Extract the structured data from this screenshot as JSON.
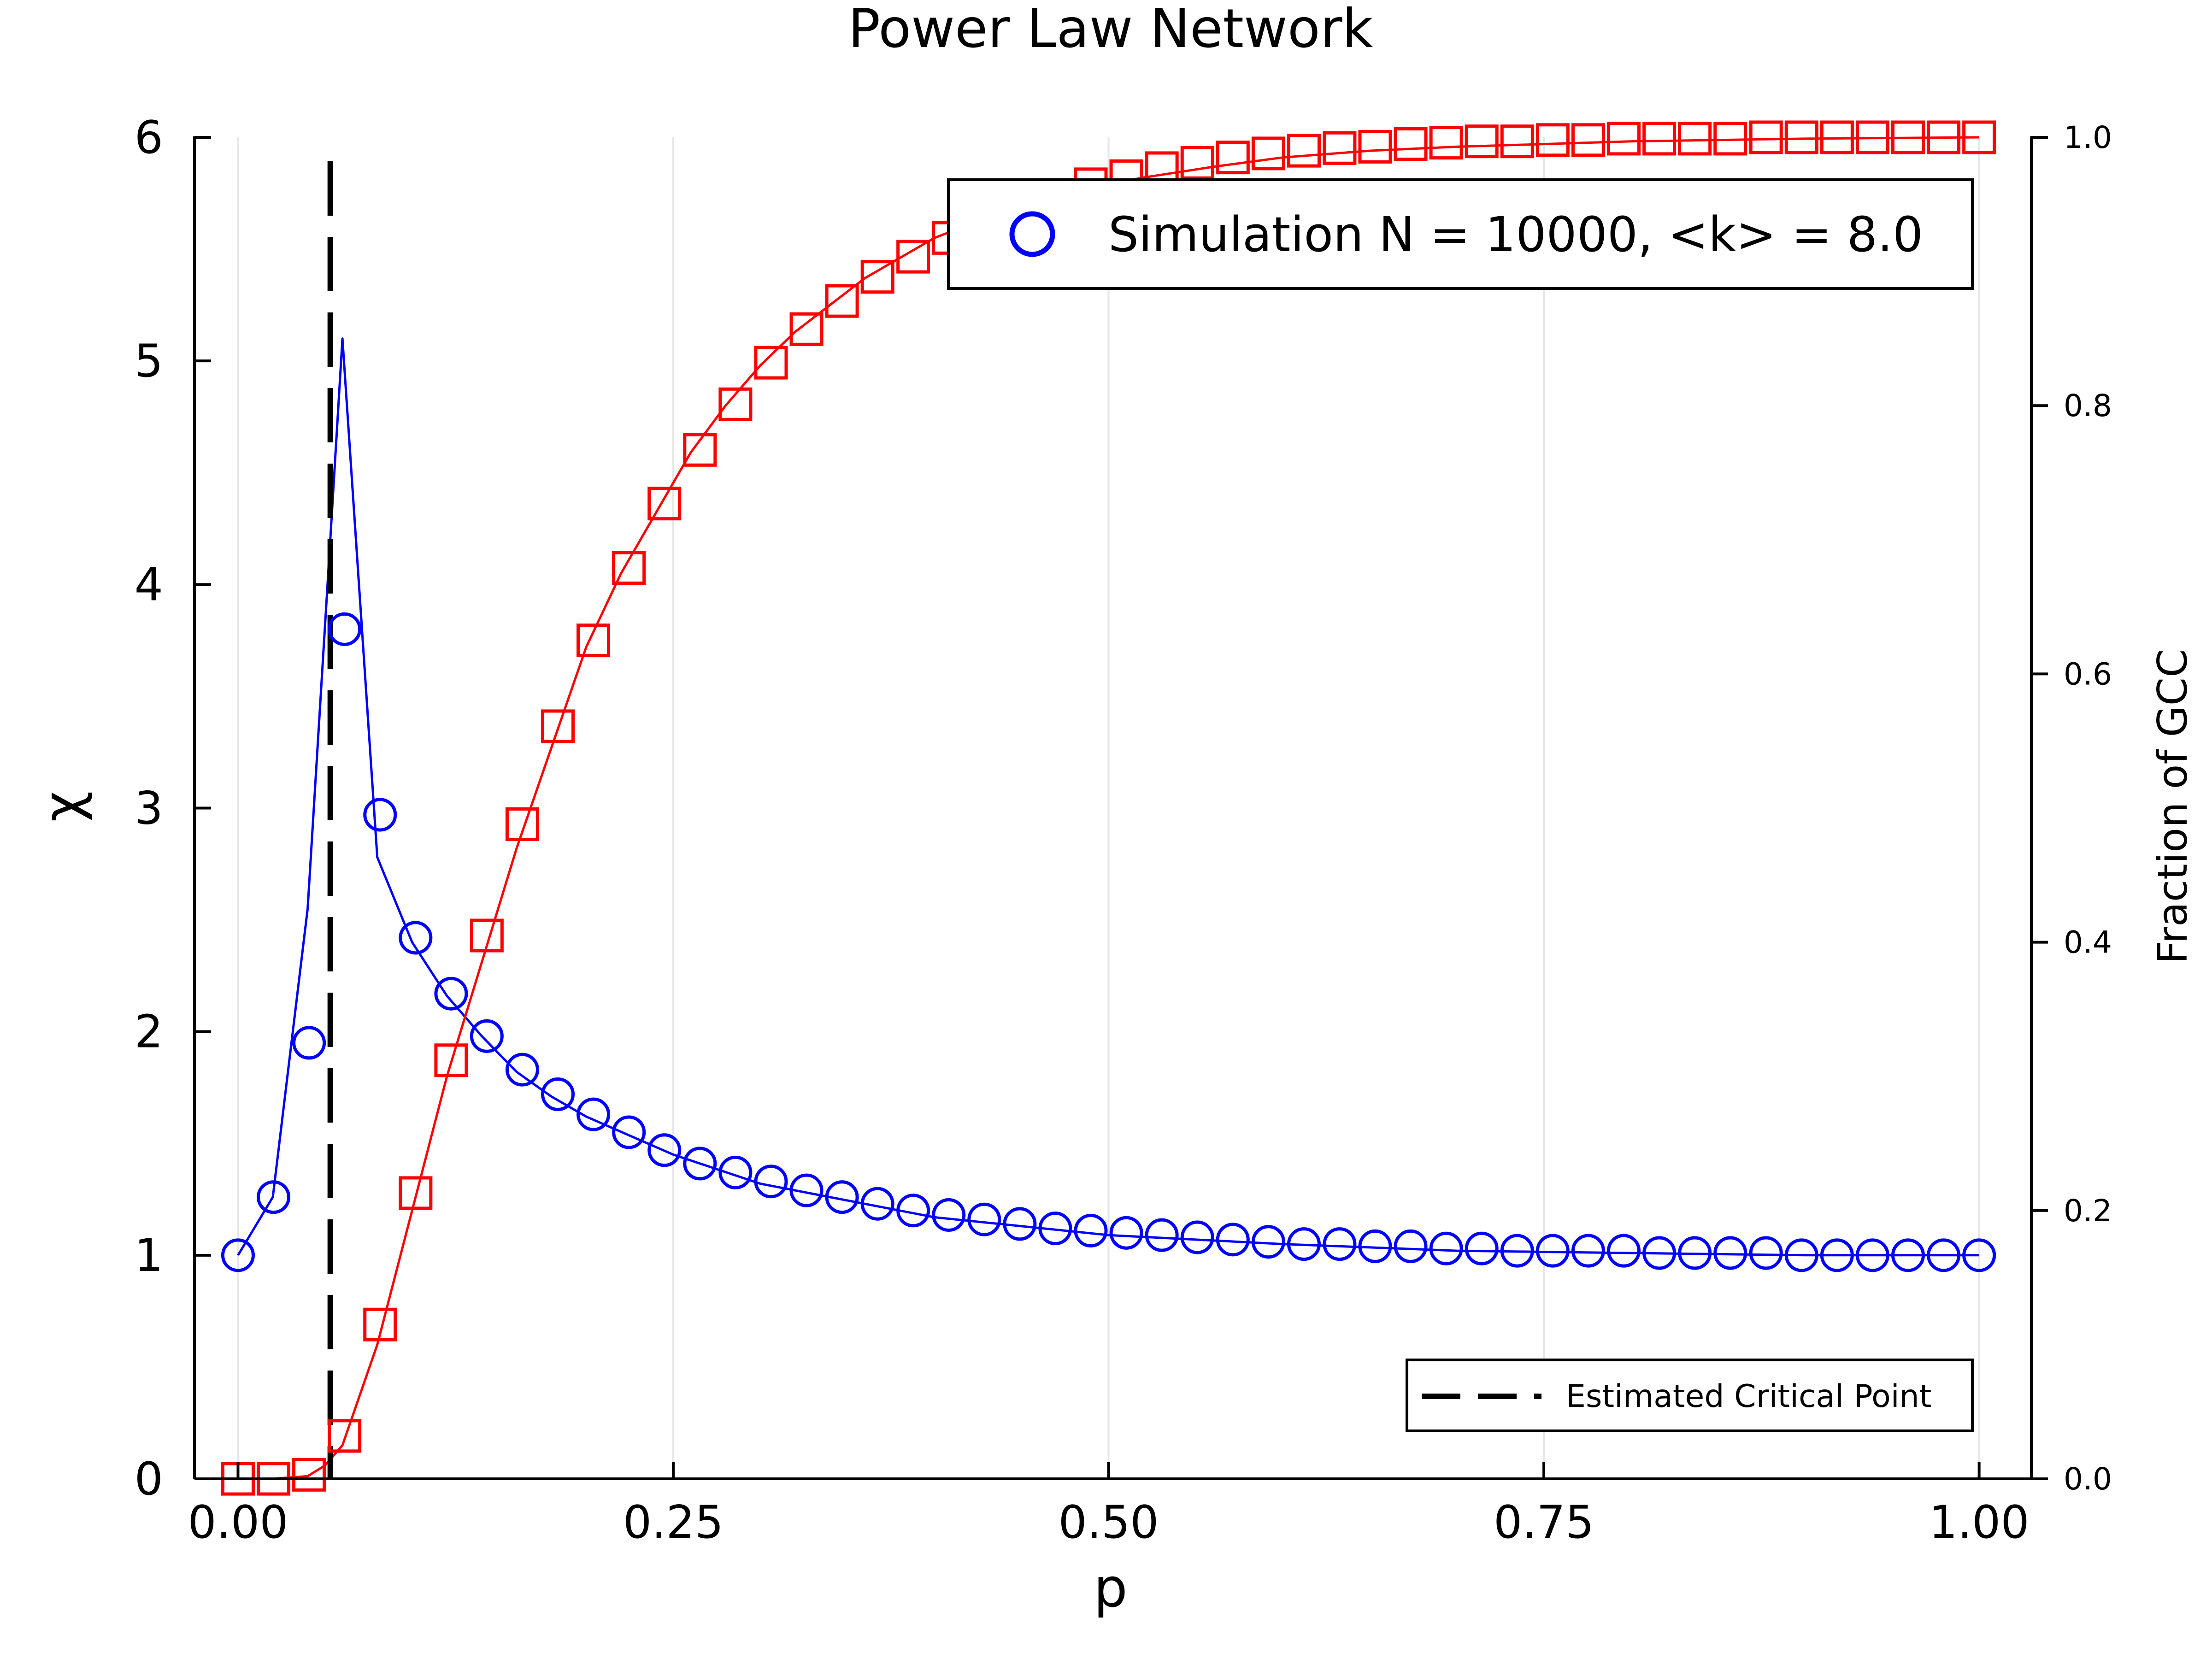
{
  "chart_data": {
    "type": "line",
    "title": "Power Law Network",
    "xlabel": "p",
    "ylabel": "χ",
    "y2label": "Fraction of GCC",
    "xlim": [
      -0.025,
      1.03
    ],
    "ylim": [
      0,
      6
    ],
    "y2lim": [
      0,
      1
    ],
    "grid": "vertical only, light",
    "x_ticks": [
      "0.00",
      "0.25",
      "0.50",
      "0.75",
      "1.00"
    ],
    "y_ticks": [
      "0",
      "1",
      "2",
      "3",
      "4",
      "5",
      "6"
    ],
    "y2_ticks": [
      "0.0",
      "0.2",
      "0.4",
      "0.6",
      "0.8",
      "1.0"
    ],
    "critical_point": {
      "x": 0.053,
      "style": "dashed",
      "color": "#000000"
    },
    "legend_top": {
      "label": "Simulation N = 10000, <k> = 8.0",
      "placement": "top-right"
    },
    "legend_bottom": {
      "label": "Estimated Critical Point",
      "placement": "bottom-right"
    },
    "series": [
      {
        "axis": "left",
        "color": "#0000ff",
        "marker": "circle",
        "curve_x": [
          0.0,
          0.02,
          0.04,
          0.053,
          0.06,
          0.08,
          0.1,
          0.12,
          0.14,
          0.16,
          0.18,
          0.2,
          0.25,
          0.3,
          0.4,
          0.5,
          0.6,
          0.7,
          0.8,
          0.9,
          1.0
        ],
        "curve_y": [
          1.0,
          1.26,
          2.55,
          4.2,
          5.1,
          2.78,
          2.4,
          2.16,
          1.98,
          1.82,
          1.71,
          1.62,
          1.45,
          1.32,
          1.17,
          1.09,
          1.05,
          1.02,
          1.01,
          1.0,
          1.0
        ],
        "marker_x": [
          0.0,
          0.0204,
          0.0408,
          0.0612,
          0.0816,
          0.102,
          0.1224,
          0.1429,
          0.1633,
          0.1837,
          0.2041,
          0.2245,
          0.2449,
          0.2653,
          0.2857,
          0.3061,
          0.3265,
          0.3469,
          0.3673,
          0.3878,
          0.4082,
          0.4286,
          0.449,
          0.4694,
          0.4898,
          0.5102,
          0.5306,
          0.551,
          0.5714,
          0.5918,
          0.6122,
          0.6327,
          0.6531,
          0.6735,
          0.6939,
          0.7143,
          0.7347,
          0.7551,
          0.7755,
          0.7959,
          0.8163,
          0.8367,
          0.8571,
          0.8776,
          0.898,
          0.9184,
          0.9388,
          0.9592,
          0.9796,
          1.0
        ],
        "marker_y": [
          1.0,
          1.26,
          1.95,
          3.8,
          2.97,
          2.42,
          2.17,
          1.98,
          1.83,
          1.72,
          1.63,
          1.55,
          1.47,
          1.41,
          1.37,
          1.33,
          1.29,
          1.26,
          1.23,
          1.2,
          1.18,
          1.16,
          1.14,
          1.12,
          1.11,
          1.1,
          1.09,
          1.08,
          1.07,
          1.06,
          1.05,
          1.05,
          1.04,
          1.04,
          1.03,
          1.03,
          1.02,
          1.02,
          1.02,
          1.02,
          1.01,
          1.01,
          1.01,
          1.01,
          1.0,
          1.0,
          1.0,
          1.0,
          1.0,
          1.0
        ]
      },
      {
        "axis": "right",
        "color": "#ff0000",
        "marker": "square",
        "curve_x": [
          0.0,
          0.02,
          0.04,
          0.05,
          0.06,
          0.08,
          0.1,
          0.12,
          0.14,
          0.16,
          0.18,
          0.2,
          0.22,
          0.24,
          0.26,
          0.28,
          0.3,
          0.32,
          0.34,
          0.36,
          0.38,
          0.4,
          0.44,
          0.48,
          0.52,
          0.56,
          0.6,
          0.65,
          0.7,
          0.75,
          0.8,
          0.9,
          1.0
        ],
        "curve_y": [
          0.0,
          0.0,
          0.002,
          0.01,
          0.025,
          0.1,
          0.2,
          0.3,
          0.385,
          0.47,
          0.545,
          0.62,
          0.675,
          0.72,
          0.765,
          0.8,
          0.83,
          0.855,
          0.875,
          0.895,
          0.91,
          0.925,
          0.945,
          0.96,
          0.97,
          0.978,
          0.985,
          0.99,
          0.993,
          0.995,
          0.997,
          0.999,
          1.0
        ],
        "marker_x": [
          0.0,
          0.0204,
          0.0408,
          0.0612,
          0.0816,
          0.102,
          0.1224,
          0.1429,
          0.1633,
          0.1837,
          0.2041,
          0.2245,
          0.2449,
          0.2653,
          0.2857,
          0.3061,
          0.3265,
          0.3469,
          0.3673,
          0.3878,
          0.4082,
          0.4286,
          0.449,
          0.4694,
          0.4898,
          0.5102,
          0.5306,
          0.551,
          0.5714,
          0.5918,
          0.6122,
          0.6327,
          0.6531,
          0.6735,
          0.6939,
          0.7143,
          0.7347,
          0.7551,
          0.7755,
          0.7959,
          0.8163,
          0.8367,
          0.8571,
          0.8776,
          0.898,
          0.9184,
          0.9388,
          0.9592,
          0.9796,
          1.0
        ],
        "marker_y": [
          0.0,
          0.0,
          0.003,
          0.032,
          0.115,
          0.213,
          0.312,
          0.405,
          0.488,
          0.561,
          0.625,
          0.679,
          0.727,
          0.767,
          0.801,
          0.832,
          0.857,
          0.878,
          0.896,
          0.911,
          0.925,
          0.937,
          0.948,
          0.957,
          0.965,
          0.971,
          0.977,
          0.981,
          0.985,
          0.988,
          0.99,
          0.992,
          0.993,
          0.995,
          0.996,
          0.997,
          0.997,
          0.998,
          0.998,
          0.999,
          0.999,
          0.999,
          0.999,
          1.0,
          1.0,
          1.0,
          1.0,
          1.0,
          1.0,
          1.0
        ]
      }
    ]
  }
}
